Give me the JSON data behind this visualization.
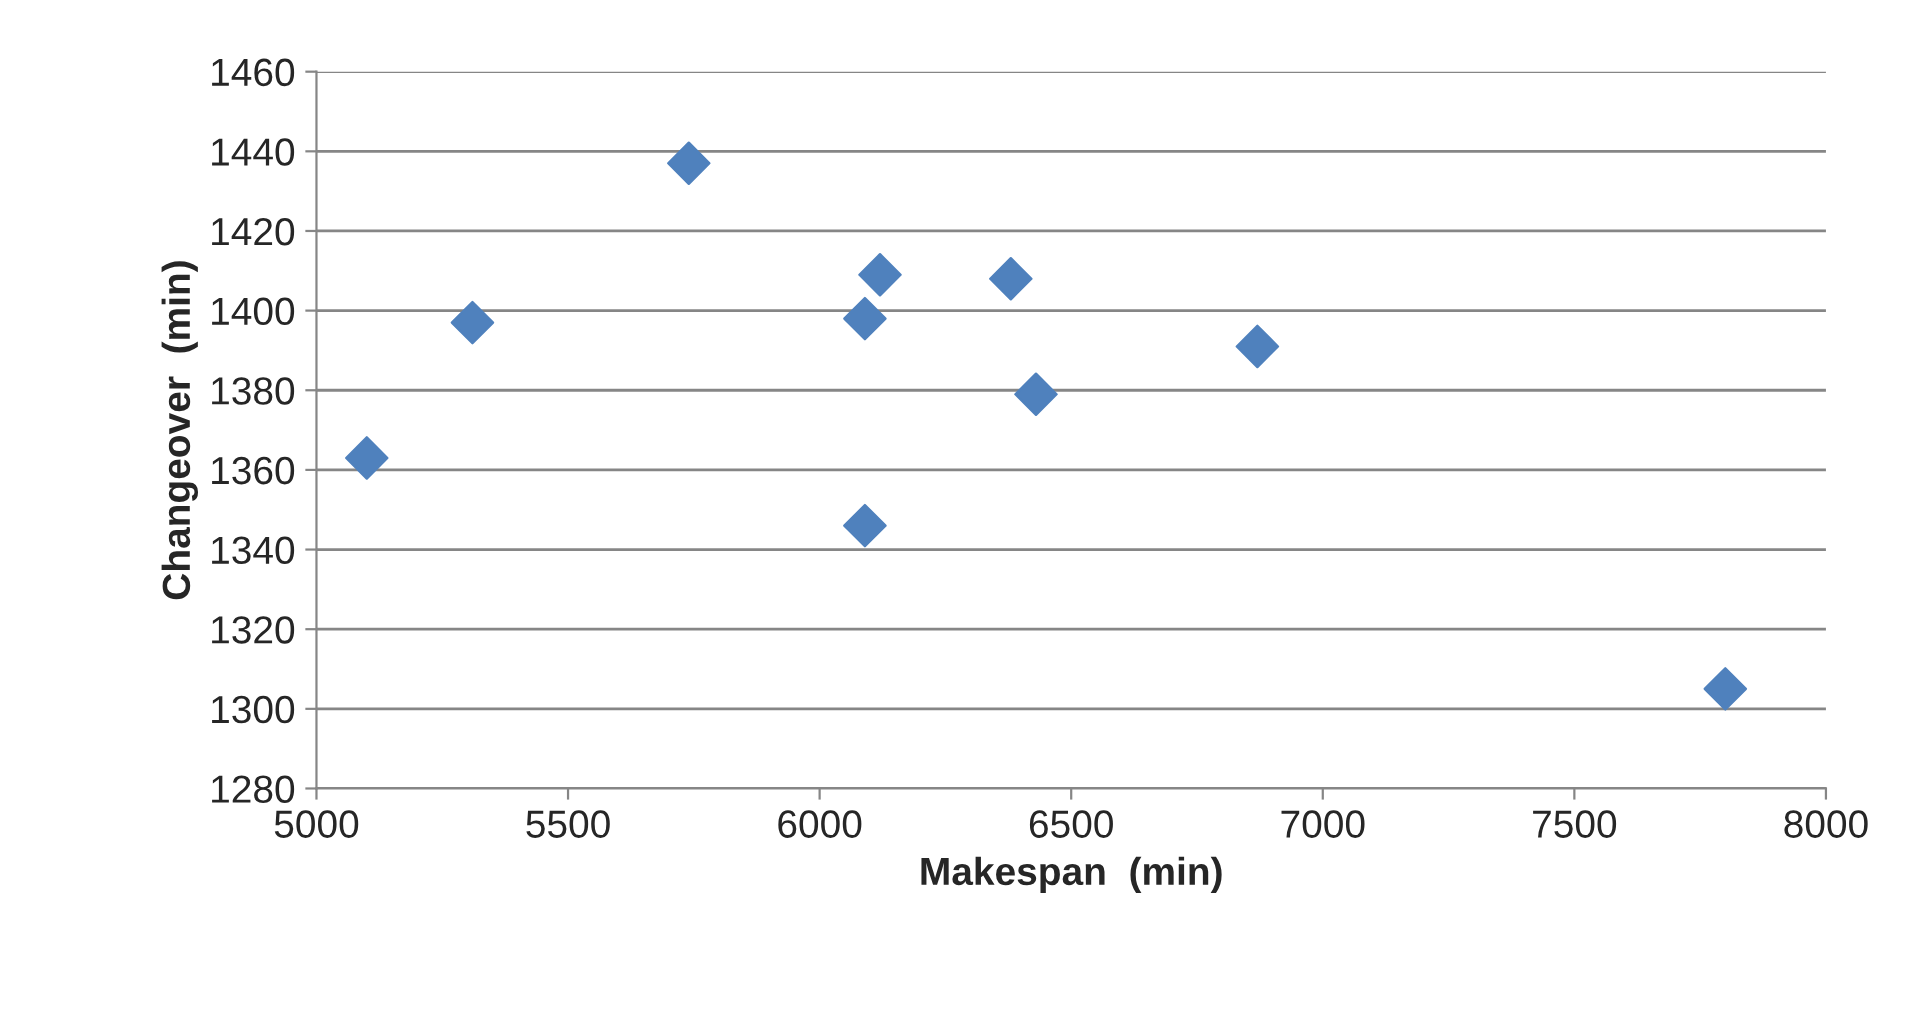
{
  "chart_data": {
    "type": "scatter",
    "xlabel": "Makespan  (min)",
    "ylabel": "Changeover  (min)",
    "x": [
      5100,
      5310,
      5740,
      6090,
      6120,
      6380,
      6430,
      6870,
      6090,
      7800
    ],
    "values": [
      1363,
      1397,
      1437,
      1398,
      1409,
      1408,
      1379,
      1391,
      1346,
      1305
    ],
    "color": "#4f81bd",
    "marker": "diamond",
    "xlim": [
      5000,
      8000
    ],
    "xticks": [
      5000,
      5500,
      6000,
      6500,
      7000,
      7500,
      8000
    ],
    "ylim": [
      1280,
      1460
    ],
    "yticks": [
      1280,
      1300,
      1320,
      1340,
      1360,
      1380,
      1400,
      1420,
      1440,
      1460
    ],
    "grid": "y",
    "legend": false
  }
}
